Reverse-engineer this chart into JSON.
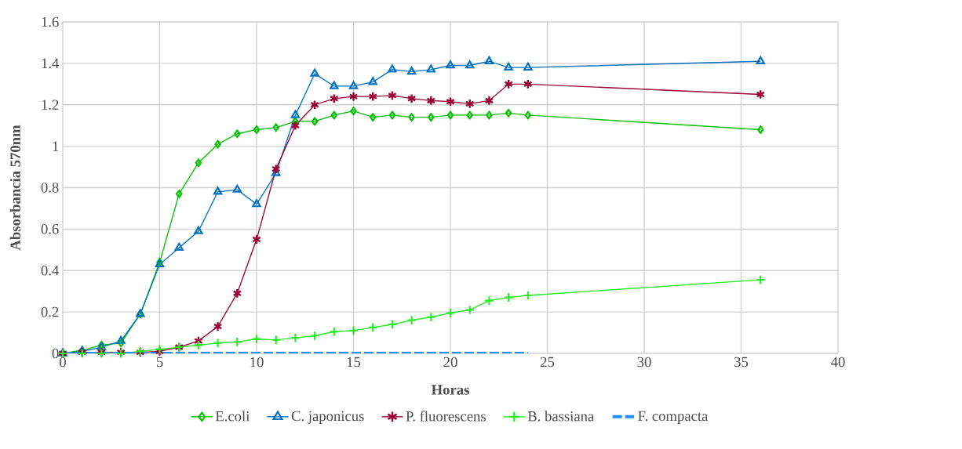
{
  "chart_data": {
    "type": "line",
    "xlabel": "Horas",
    "ylabel": "Absorbancia  570nm",
    "x": [
      0,
      1,
      2,
      3,
      4,
      5,
      6,
      7,
      8,
      9,
      10,
      11,
      12,
      13,
      14,
      15,
      16,
      17,
      18,
      19,
      20,
      21,
      22,
      23,
      24,
      36
    ],
    "xlim": [
      0,
      40
    ],
    "xticks": [
      0,
      5,
      10,
      15,
      20,
      25,
      30,
      35,
      40
    ],
    "ylim": [
      0,
      1.6
    ],
    "yticks": [
      0,
      0.2,
      0.4,
      0.6,
      0.8,
      1,
      1.2,
      1.4,
      1.6
    ],
    "grid": true,
    "legend": "bottom",
    "series": [
      {
        "name": "E.coli",
        "color": "#00c000",
        "marker": "diamond",
        "values": [
          0,
          0.015,
          0.04,
          0.05,
          0.19,
          0.44,
          0.77,
          0.92,
          1.01,
          1.06,
          1.08,
          1.09,
          1.12,
          1.12,
          1.15,
          1.17,
          1.14,
          1.15,
          1.14,
          1.14,
          1.15,
          1.15,
          1.15,
          1.16,
          1.15,
          1.08
        ]
      },
      {
        "name": "C. japonicus",
        "color": "#0070c0",
        "marker": "triangle",
        "values": [
          0,
          0.01,
          0.03,
          0.06,
          0.19,
          0.43,
          0.51,
          0.59,
          0.78,
          0.79,
          0.72,
          0.87,
          1.15,
          1.35,
          1.29,
          1.29,
          1.31,
          1.37,
          1.36,
          1.37,
          1.39,
          1.39,
          1.41,
          1.38,
          1.38,
          1.41
        ]
      },
      {
        "name": "P. fluorescens",
        "color": "#990033",
        "marker": "cross",
        "values": [
          0,
          0.005,
          0.005,
          0.005,
          0.005,
          0.01,
          0.03,
          0.06,
          0.13,
          0.29,
          0.55,
          0.89,
          1.1,
          1.2,
          1.23,
          1.24,
          1.24,
          1.245,
          1.23,
          1.22,
          1.215,
          1.205,
          1.22,
          1.3,
          1.3,
          1.25
        ]
      },
      {
        "name": "B. bassiana",
        "color": "#22ee22",
        "marker": "cross",
        "values": [
          0,
          0,
          0,
          0,
          0.01,
          0.02,
          0.03,
          0.04,
          0.05,
          0.055,
          0.07,
          0.065,
          0.075,
          0.085,
          0.105,
          0.11,
          0.125,
          0.14,
          0.16,
          0.175,
          0.195,
          0.21,
          0.255,
          0.27,
          0.28,
          0.355
        ]
      },
      {
        "name": "F. compacta",
        "color": "#1e90ff",
        "marker": "none",
        "line_style": "dashed",
        "values": [
          0,
          0,
          0,
          0,
          0,
          0,
          0,
          0,
          0,
          0,
          0,
          0,
          0,
          0,
          0,
          0,
          0,
          0,
          0,
          0,
          0,
          0,
          0,
          0,
          0,
          null
        ]
      }
    ]
  }
}
